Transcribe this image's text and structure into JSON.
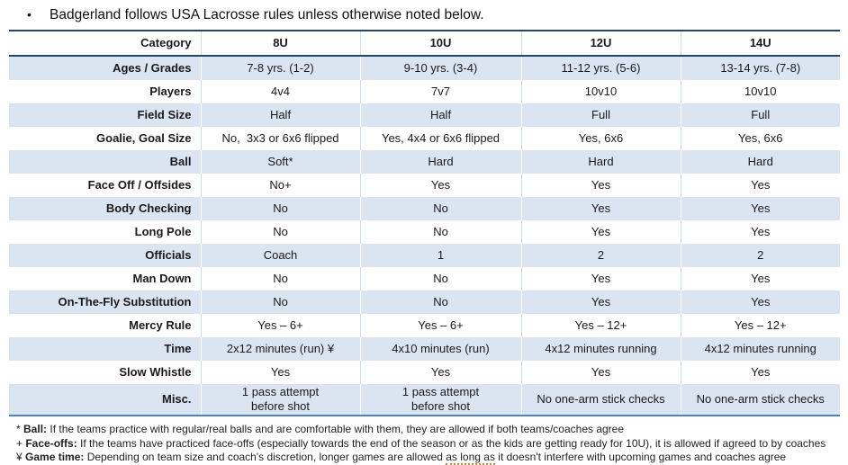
{
  "title": {
    "bullet": "•",
    "text": "Badgerland follows USA Lacrosse rules unless otherwise noted below."
  },
  "colors": {
    "border_dark": "#24466b",
    "border_bottom": "#4f81bd",
    "row_stripe": "#dbe5f1",
    "column_separator": "#cddcee",
    "grammar_underline": "#c9873a"
  },
  "table": {
    "header": [
      "Category",
      "8U",
      "10U",
      "12U",
      "14U"
    ],
    "rows": [
      {
        "label": "Ages / Grades",
        "values": [
          "7-8 yrs. (1-2)",
          "9-10 yrs. (3-4)",
          "11-12 yrs. (5-6)",
          "13-14 yrs. (7-8)"
        ]
      },
      {
        "label": "Players",
        "values": [
          "4v4",
          "7v7",
          "10v10",
          "10v10"
        ]
      },
      {
        "label": "Field Size",
        "values": [
          "Half",
          "Half",
          "Full",
          "Full"
        ]
      },
      {
        "label": "Goalie, Goal Size",
        "values": [
          "No,  3x3 or 6x6 flipped",
          "Yes, 4x4 or 6x6 flipped",
          "Yes, 6x6",
          "Yes, 6x6"
        ]
      },
      {
        "label": "Ball",
        "values": [
          "Soft*",
          "Hard",
          "Hard",
          "Hard"
        ]
      },
      {
        "label": "Face Off / Offsides",
        "values": [
          "No+",
          "Yes",
          "Yes",
          "Yes"
        ]
      },
      {
        "label": "Body Checking",
        "values": [
          "No",
          "No",
          "Yes",
          "Yes"
        ]
      },
      {
        "label": "Long Pole",
        "values": [
          "No",
          "No",
          "Yes",
          "Yes"
        ]
      },
      {
        "label": "Officials",
        "values": [
          "Coach",
          "1",
          "2",
          "2"
        ]
      },
      {
        "label": "Man Down",
        "values": [
          "No",
          "No",
          "Yes",
          "Yes"
        ]
      },
      {
        "label": "On-The-Fly Substitution",
        "values": [
          "No",
          "No",
          "Yes",
          "Yes"
        ]
      },
      {
        "label": "Mercy Rule",
        "values": [
          "Yes – 6+",
          "Yes – 6+",
          "Yes – 12+",
          "Yes – 12+"
        ]
      },
      {
        "label": "Time",
        "values": [
          "2x12 minutes (run) ¥",
          "4x10 minutes (run)",
          "4x12 minutes running",
          "4x12 minutes running"
        ]
      },
      {
        "label": "Slow Whistle",
        "values": [
          "Yes",
          "Yes",
          "Yes",
          "Yes"
        ]
      },
      {
        "label": "Misc.",
        "values": [
          "1 pass attempt\nbefore shot",
          "1 pass attempt\nbefore shot",
          "No one-arm stick checks",
          "No one-arm stick checks"
        ]
      }
    ]
  },
  "footnotes": [
    {
      "symbol": "*",
      "term": "Ball:",
      "before": "If the teams practice with regular/real balls and are comfortable with them, they are allowed if both teams/coaches agree",
      "underlined": "",
      "after": ""
    },
    {
      "symbol": "+",
      "term": "Face-offs:",
      "before": "If the teams have practiced face-offs (especially towards the end of the season or as the kids are getting ready for 10U), it is allowed if agreed to by coaches",
      "underlined": "",
      "after": ""
    },
    {
      "symbol": "¥",
      "term": "Game time:",
      "before": "Depending on team size and coach's discretion, longer games are allowed ",
      "underlined": "as long as",
      "after": " it doesn't interfere with upcoming games and coaches agree"
    }
  ]
}
